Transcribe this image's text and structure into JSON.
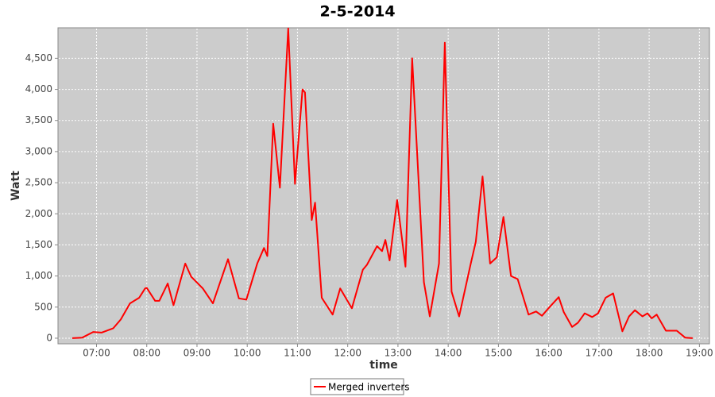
{
  "chart_data": {
    "type": "line",
    "title": "2-5-2014",
    "x_label": "time",
    "y_label": "Watt",
    "x": [
      "06:31",
      "06:43",
      "06:56",
      "07:06",
      "07:20",
      "07:29",
      "07:40",
      "07:51",
      "07:58",
      "08:00",
      "08:10",
      "08:15",
      "08:25",
      "08:32",
      "08:46",
      "08:53",
      "09:07",
      "09:19",
      "09:37",
      "09:50",
      "09:59",
      "10:12",
      "10:20",
      "10:24",
      "10:31",
      "10:39",
      "10:49",
      "10:57",
      "11:06",
      "11:09",
      "11:17",
      "11:21",
      "11:29",
      "11:42",
      "11:51",
      "12:05",
      "12:18",
      "12:23",
      "12:35",
      "12:41",
      "12:45",
      "12:50",
      "12:59",
      "13:09",
      "13:17",
      "13:31",
      "13:38",
      "13:49",
      "13:56",
      "14:04",
      "14:13",
      "14:27",
      "14:33",
      "14:41",
      "14:50",
      "14:58",
      "15:06",
      "15:15",
      "15:23",
      "15:36",
      "15:45",
      "15:52",
      "16:01",
      "16:12",
      "16:18",
      "16:28",
      "16:35",
      "16:43",
      "16:52",
      "16:59",
      "17:08",
      "17:17",
      "17:28",
      "17:36",
      "17:43",
      "17:52",
      "17:58",
      "18:03",
      "18:09",
      "18:20",
      "18:33",
      "18:43",
      "18:52"
    ],
    "series": [
      {
        "name": "Merged inverters",
        "color": "#ff0000",
        "values": [
          0,
          10,
          100,
          90,
          160,
          300,
          560,
          650,
          800,
          810,
          600,
          600,
          880,
          530,
          1200,
          990,
          800,
          560,
          1270,
          640,
          620,
          1200,
          1450,
          1320,
          3450,
          2420,
          4980,
          2480,
          4000,
          3950,
          1900,
          2180,
          650,
          380,
          800,
          480,
          1100,
          1180,
          1480,
          1400,
          1580,
          1250,
          2220,
          1150,
          4500,
          900,
          350,
          1200,
          4750,
          750,
          350,
          1200,
          1550,
          2600,
          1200,
          1300,
          1950,
          1000,
          950,
          380,
          430,
          360,
          500,
          660,
          420,
          180,
          250,
          400,
          340,
          400,
          650,
          720,
          110,
          350,
          450,
          350,
          400,
          320,
          380,
          120,
          120,
          10,
          0
        ]
      }
    ],
    "xlim": [
      "06:14",
      "19:12"
    ],
    "xticks": [
      "07:00",
      "08:00",
      "09:00",
      "10:00",
      "11:00",
      "12:00",
      "13:00",
      "14:00",
      "15:00",
      "16:00",
      "17:00",
      "18:00",
      "19:00"
    ],
    "ylim": [
      -90,
      4990
    ],
    "yticks": [
      0,
      500,
      {
        "value": 1000,
        "label": "1,000"
      },
      {
        "value": 1500,
        "label": "1,500"
      },
      {
        "value": 2000,
        "label": "2,000"
      },
      {
        "value": 2500,
        "label": "2,500"
      },
      {
        "value": 3000,
        "label": "3,000"
      },
      {
        "value": 3500,
        "label": "3,500"
      },
      {
        "value": 4000,
        "label": "4,000"
      },
      {
        "value": 4500,
        "label": "4,500"
      }
    ],
    "grid": true,
    "legend": "bottom"
  }
}
